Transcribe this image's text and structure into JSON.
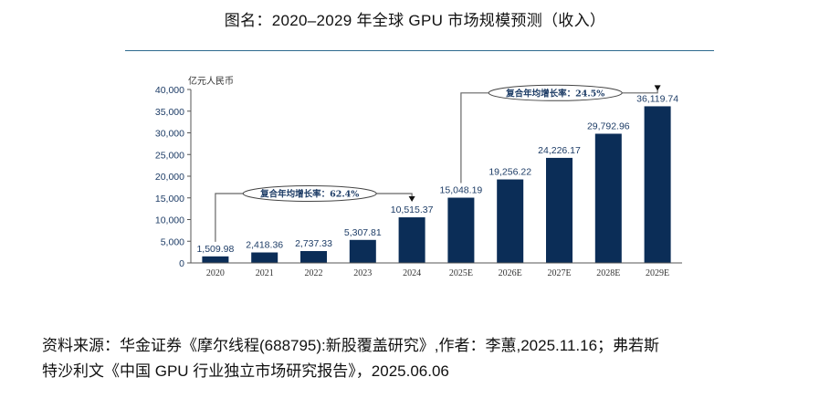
{
  "figure": {
    "title": "图名：2020–2029 年全球 GPU 市场规模预测（收入）",
    "source_line1": "资料来源：华金证券《摩尔线程(688795):新股覆盖研究》,作者：李蕙,2025.11.16；弗若斯",
    "source_line2": "特沙利文《中国 GPU 行业独立市场研究报告》，2025.06.06"
  },
  "colors": {
    "bar": "#0b2d57",
    "axis_text": "#1d3c66",
    "rule": "#2e6a8e",
    "annotation": "#333333"
  },
  "chart_data": {
    "type": "bar",
    "title": "2020–2029 年全球 GPU 市场规模预测（收入）",
    "xlabel": "",
    "ylabel": "亿元人民币",
    "categories": [
      "2020",
      "2021",
      "2022",
      "2023",
      "2024",
      "2025E",
      "2026E",
      "2027E",
      "2028E",
      "2029E"
    ],
    "values": [
      1509.98,
      2418.36,
      2737.33,
      5307.81,
      10515.37,
      15048.19,
      19256.22,
      24226.17,
      29792.96,
      36119.74
    ],
    "value_labels": [
      "1,509.98",
      "2,418.36",
      "2,737.33",
      "5,307.81",
      "10,515.37",
      "15,048.19",
      "19,256.22",
      "24,226.17",
      "29,792.96",
      "36,119.74"
    ],
    "ylim": [
      0,
      40000
    ],
    "yticks": [
      0,
      5000,
      10000,
      15000,
      20000,
      25000,
      30000,
      35000,
      40000
    ],
    "ytick_labels": [
      "0",
      "5,000",
      "10,000",
      "15,000",
      "20,000",
      "25,000",
      "30,000",
      "35,000",
      "40,000"
    ],
    "grid": false,
    "legend": "none",
    "annotations": [
      {
        "text": "复合年均增长率：62.4%",
        "from": "2020",
        "to": "2024",
        "level": 16000
      },
      {
        "text": "复合年均增长率：24.5%",
        "from": "2025E",
        "to": "2029E",
        "level": 39200
      }
    ]
  }
}
